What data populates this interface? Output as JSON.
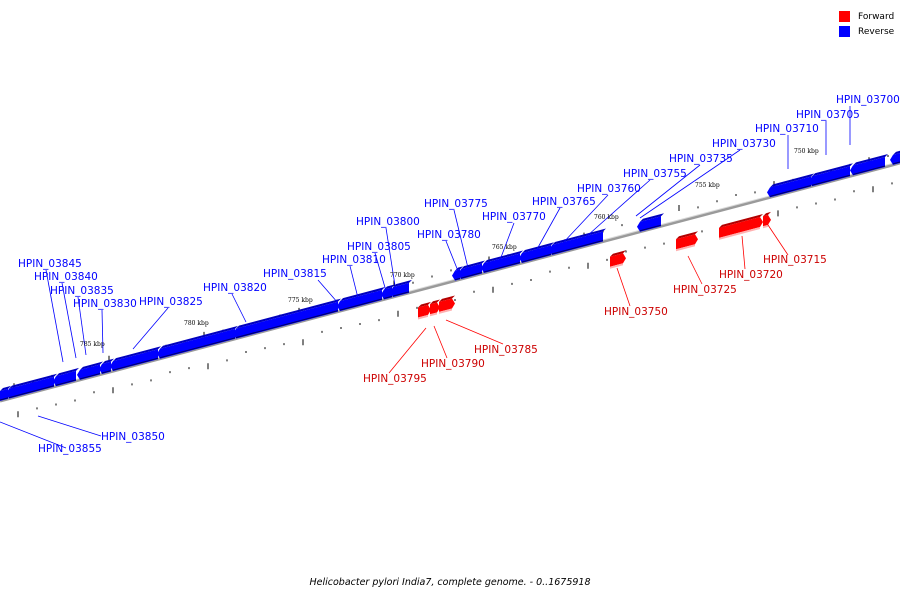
{
  "caption": "Helicobacter pylori India7, complete genome. - 0..1675918",
  "legend": [
    {
      "label": "Forward",
      "color": "#ff0000"
    },
    {
      "label": "Reverse",
      "color": "#0000ff"
    }
  ],
  "colors": {
    "forward": "#ff0000",
    "reverse": "#0000ff",
    "backbone": "#808080"
  },
  "scale_labels": [
    "785 kbp",
    "780 kbp",
    "775 kbp",
    "770 kbp",
    "765 kbp",
    "760 kbp",
    "755 kbp",
    "750 kbp"
  ],
  "genes_reverse": [
    "HPIN_03700",
    "HPIN_03705",
    "HPIN_03710",
    "HPIN_03730",
    "HPIN_03735",
    "HPIN_03755",
    "HPIN_03760",
    "HPIN_03765",
    "HPIN_03770",
    "HPIN_03775",
    "HPIN_03780",
    "HPIN_03800",
    "HPIN_03805",
    "HPIN_03810",
    "HPIN_03815",
    "HPIN_03820",
    "HPIN_03825",
    "HPIN_03830",
    "HPIN_03835",
    "HPIN_03840",
    "HPIN_03845",
    "HPIN_03850",
    "HPIN_03855"
  ],
  "genes_forward": [
    "HPIN_03715",
    "HPIN_03720",
    "HPIN_03725",
    "HPIN_03750",
    "HPIN_03785",
    "HPIN_03790",
    "HPIN_03795"
  ]
}
